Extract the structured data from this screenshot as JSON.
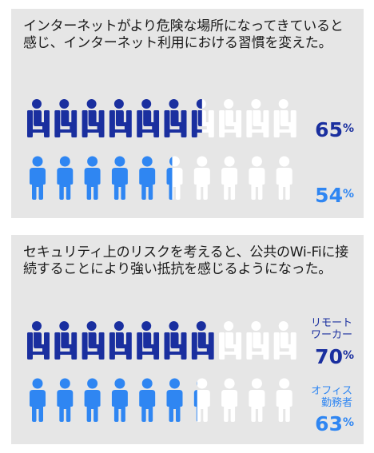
{
  "colors": {
    "dark_blue": "#1a2f9f",
    "light_blue": "#2f86f2",
    "empty": "#ffffff",
    "panel_bg": "#e6e6e6"
  },
  "panel1": {
    "heading": "インターネットがより危険な場所になってきていると感じ、インターネット利用における習慣を変えた。",
    "rows": [
      {
        "icon": "seated-person-icon",
        "color": "#1a2f9f",
        "value": 65,
        "label": "",
        "value_text": "65",
        "unit": "%"
      },
      {
        "icon": "standing-person-icon",
        "color": "#2f86f2",
        "value": 54,
        "label": "",
        "value_text": "54",
        "unit": "%"
      }
    ]
  },
  "panel2": {
    "heading": "セキュリティ上のリスクを考えると、公共のWi-Fiに接続することにより強い抵抗を感じるようになった。",
    "rows": [
      {
        "icon": "seated-person-icon",
        "color": "#1a2f9f",
        "value": 70,
        "label_lines": [
          "リモート",
          "ワーカー"
        ],
        "value_text": "70",
        "unit": "%"
      },
      {
        "icon": "standing-person-icon",
        "color": "#2f86f2",
        "value": 63,
        "label_lines": [
          "オフィス",
          "勤務者"
        ],
        "value_text": "63",
        "unit": "%"
      }
    ]
  },
  "chart_data": [
    {
      "type": "bar",
      "title": "インターネットがより危険な場所になってきていると感じ、インターネット利用における習慣を変えた。",
      "series": [
        {
          "values": [
            65,
            54
          ]
        }
      ],
      "unit": "%"
    },
    {
      "type": "bar",
      "title": "セキュリティ上のリスクを考えると、公共のWi-Fiに接続することにより強い抵抗を感じるようになった。",
      "categories": [
        "リモートワーカー",
        "オフィス勤務者"
      ],
      "series": [
        {
          "values": [
            70,
            63
          ]
        }
      ],
      "unit": "%"
    }
  ]
}
